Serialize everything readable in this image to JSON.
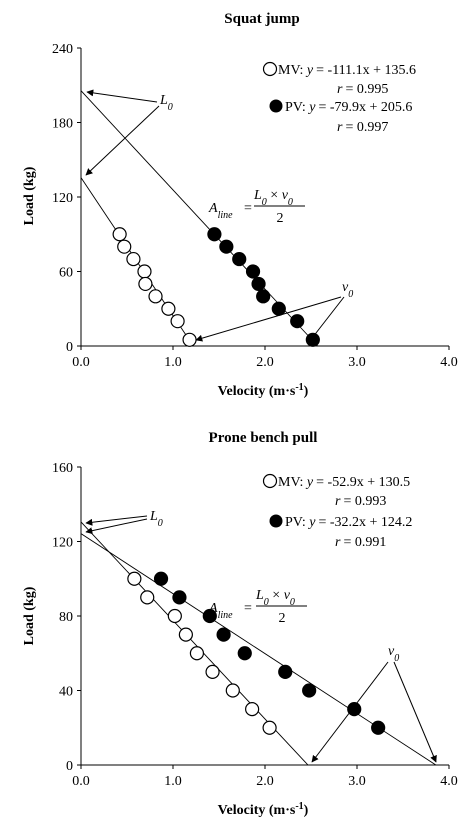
{
  "chart_data": [
    {
      "type": "scatter",
      "title": "Squat jump",
      "xlabel": "Velocity (m·s",
      "xlabel_sup": "-1",
      "xlabel_close": ")",
      "ylabel": "Load (kg)",
      "xlim": [
        0,
        4
      ],
      "ylim": [
        0,
        240
      ],
      "xticks": [
        "0.0",
        "1.0",
        "2.0",
        "3.0",
        "4.0"
      ],
      "yticks": [
        "0",
        "60",
        "120",
        "180",
        "240"
      ],
      "legend_position": "top-right",
      "series": [
        {
          "name": "MV",
          "marker": "open-circle",
          "equation": "= -111.1x + 135.6",
          "r_label": "= 0.995",
          "slope": -111.1,
          "intercept": 135.6,
          "x": [
            0.42,
            0.47,
            0.57,
            0.69,
            0.7,
            0.81,
            0.95,
            1.05,
            1.18
          ],
          "y": [
            90,
            80,
            70,
            60,
            50,
            40,
            30,
            20,
            5
          ]
        },
        {
          "name": "PV",
          "marker": "filled-circle",
          "equation": "= -79.9x + 205.6",
          "r_label": "= 0.997",
          "slope": -79.9,
          "intercept": 205.6,
          "x": [
            1.45,
            1.58,
            1.72,
            1.87,
            1.93,
            1.98,
            2.15,
            2.35,
            2.52
          ],
          "y": [
            90,
            80,
            70,
            60,
            50,
            40,
            30,
            20,
            5
          ]
        }
      ],
      "annotations": {
        "L0": "L",
        "L0_sub": "0",
        "v0": "v",
        "v0_sub": "0",
        "area_prefix": "A",
        "area_sub": "line",
        "area_eq": "=",
        "area_num_L": "L",
        "area_num_sub1": "0",
        "area_num_times": " × ",
        "area_num_v": "v",
        "area_num_sub2": "0",
        "area_den": "2"
      }
    },
    {
      "type": "scatter",
      "title": "Prone bench pull",
      "xlabel": "Velocity (m·s",
      "xlabel_sup": "-1",
      "xlabel_close": ")",
      "ylabel": "Load (kg)",
      "xlim": [
        0,
        4
      ],
      "ylim": [
        0,
        160
      ],
      "xticks": [
        "0.0",
        "1.0",
        "2.0",
        "3.0",
        "4.0"
      ],
      "yticks": [
        "0",
        "40",
        "80",
        "120",
        "160"
      ],
      "legend_position": "top-right",
      "series": [
        {
          "name": "MV",
          "marker": "open-circle",
          "equation": "= -52.9x + 130.5",
          "r_label": "= 0.993",
          "slope": -52.9,
          "intercept": 130.5,
          "x": [
            0.58,
            0.72,
            1.02,
            1.14,
            1.26,
            1.43,
            1.65,
            1.86,
            2.05
          ],
          "y": [
            100,
            90,
            80,
            70,
            60,
            50,
            40,
            30,
            20
          ]
        },
        {
          "name": "PV",
          "marker": "filled-circle",
          "equation": "= -32.2x + 124.2",
          "r_label": "= 0.991",
          "slope": -32.2,
          "intercept": 124.2,
          "x": [
            0.87,
            1.07,
            1.4,
            1.55,
            1.78,
            2.22,
            2.48,
            2.97,
            3.23
          ],
          "y": [
            100,
            90,
            80,
            70,
            60,
            50,
            40,
            30,
            20
          ]
        }
      ],
      "annotations": {
        "L0": "L",
        "L0_sub": "0",
        "v0": "v",
        "v0_sub": "0",
        "area_prefix": "A",
        "area_sub": "line",
        "area_eq": "=",
        "area_num_L": "L",
        "area_num_sub1": "0",
        "area_num_times": " × ",
        "area_num_v": "v",
        "area_num_sub2": "0",
        "area_den": "2"
      }
    }
  ],
  "legend_r_prefix": "r",
  "legend_colon": ": ",
  "legend_y": "y"
}
